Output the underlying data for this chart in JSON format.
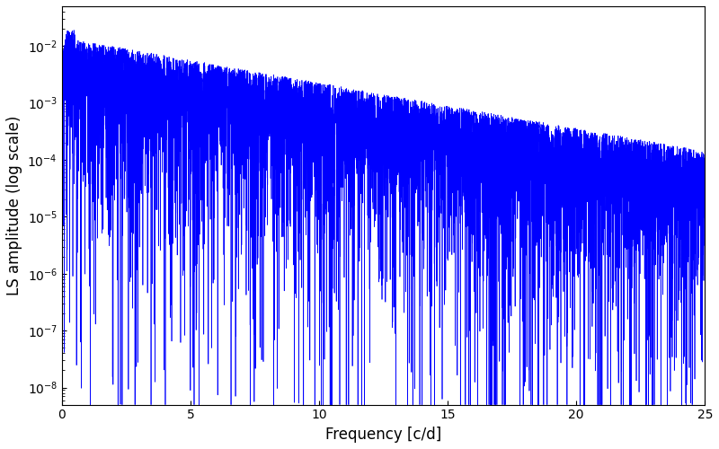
{
  "title": "",
  "xlabel": "Frequency [c/d]",
  "ylabel": "LS amplitude (log scale)",
  "line_color": "#0000ff",
  "line_width": 0.5,
  "xlim": [
    0,
    25
  ],
  "ylim": [
    5e-09,
    0.05
  ],
  "xticks": [
    0,
    5,
    10,
    15,
    20,
    25
  ],
  "figsize": [
    8.0,
    5.0
  ],
  "dpi": 100,
  "seed": 42,
  "n_points": 8000,
  "freq_max": 25.0,
  "background_color": "#ffffff"
}
